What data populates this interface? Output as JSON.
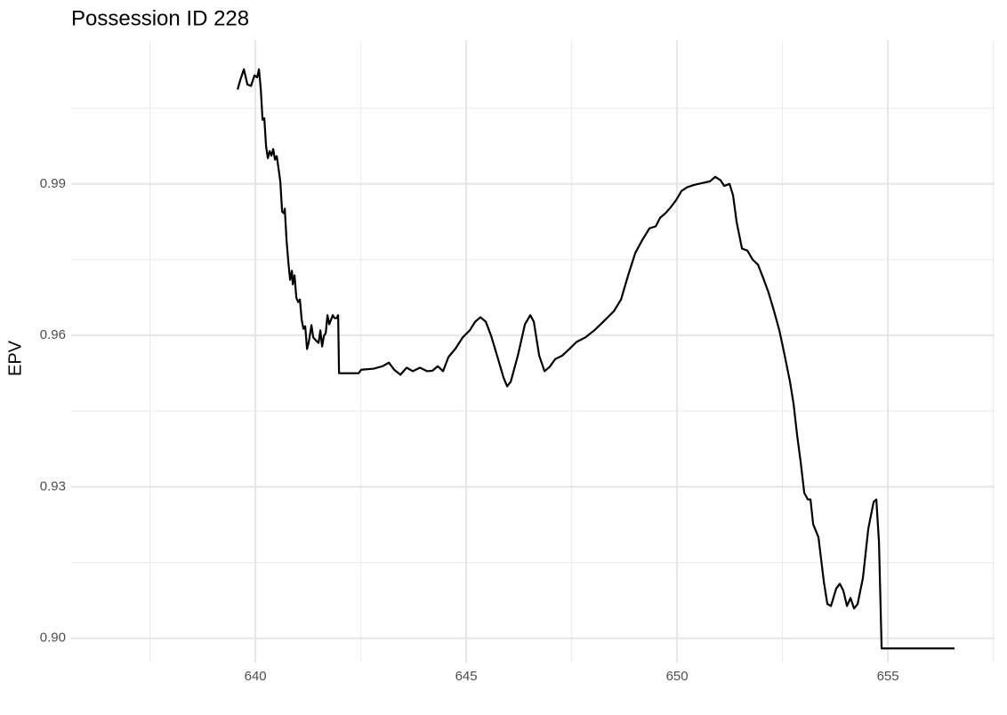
{
  "chart_data": {
    "type": "line",
    "title": "Possession ID 228",
    "y_label": "EPV",
    "color": "#000000",
    "grid": true,
    "xlim": [
      635.63,
      657.53
    ],
    "ylim": [
      0.8952,
      1.0185
    ],
    "xticks": [
      640,
      645,
      650,
      655
    ],
    "yticks": [
      {
        "value": 0.9,
        "label": "0.90"
      },
      0.93,
      0.96,
      0.99
    ],
    "x": [
      639.578,
      639.641,
      639.726,
      639.81,
      639.895,
      639.979,
      640.042,
      640.084,
      640.127,
      640.169,
      640.211,
      640.253,
      640.295,
      640.338,
      640.38,
      640.422,
      640.464,
      640.506,
      640.549,
      640.591,
      640.633,
      640.675,
      640.696,
      640.738,
      640.781,
      640.823,
      640.865,
      640.886,
      640.928,
      640.97,
      641.013,
      641.055,
      641.097,
      641.139,
      641.181,
      641.224,
      641.266,
      641.329,
      641.371,
      641.435,
      641.498,
      641.54,
      641.582,
      641.624,
      641.667,
      641.709,
      641.751,
      641.793,
      641.835,
      641.878,
      641.92,
      641.962,
      641.983,
      642.447,
      642.511,
      642.806,
      643.017,
      643.165,
      643.291,
      643.439,
      643.586,
      643.734,
      643.903,
      644.072,
      644.198,
      644.325,
      644.451,
      644.578,
      644.747,
      644.916,
      645.084,
      645.211,
      645.338,
      645.464,
      645.591,
      645.759,
      645.886,
      645.97,
      646.055,
      646.224,
      646.392,
      646.519,
      646.603,
      646.73,
      646.857,
      646.983,
      647.11,
      647.278,
      647.447,
      647.616,
      647.827,
      648.038,
      648.249,
      648.502,
      648.671,
      648.84,
      649.008,
      649.177,
      649.346,
      649.494,
      649.599,
      649.726,
      649.852,
      649.979,
      650.105,
      650.232,
      650.401,
      650.612,
      650.781,
      650.907,
      651.034,
      651.118,
      651.245,
      651.329,
      651.414,
      651.54,
      651.667,
      651.793,
      651.92,
      652.046,
      652.173,
      652.3,
      652.426,
      652.553,
      652.679,
      652.764,
      652.848,
      652.932,
      653.017,
      653.101,
      653.165,
      653.228,
      653.354,
      653.481,
      653.565,
      653.65,
      653.776,
      653.861,
      653.945,
      654.03,
      654.114,
      654.198,
      654.283,
      654.409,
      654.536,
      654.662,
      654.726,
      654.789,
      654.852,
      656.582
    ],
    "values": [
      1.0087,
      1.0106,
      1.0127,
      1.0097,
      1.0094,
      1.0115,
      1.0111,
      1.0127,
      1.0088,
      1.0027,
      1.003,
      0.9974,
      0.9951,
      0.9965,
      0.9956,
      0.9969,
      0.9948,
      0.9955,
      0.993,
      0.9904,
      0.9845,
      0.9842,
      0.9851,
      0.9789,
      0.9745,
      0.971,
      0.9728,
      0.9701,
      0.9719,
      0.9675,
      0.9666,
      0.9671,
      0.9631,
      0.9613,
      0.9618,
      0.9573,
      0.9587,
      0.962,
      0.9596,
      0.959,
      0.9585,
      0.961,
      0.9578,
      0.9599,
      0.9604,
      0.964,
      0.9622,
      0.9631,
      0.964,
      0.9634,
      0.9634,
      0.964,
      0.9525,
      0.9525,
      0.9532,
      0.9534,
      0.9539,
      0.9546,
      0.9532,
      0.9522,
      0.9536,
      0.9529,
      0.9536,
      0.9529,
      0.953,
      0.9539,
      0.9529,
      0.9557,
      0.9574,
      0.9596,
      0.961,
      0.9627,
      0.9636,
      0.9627,
      0.9599,
      0.9552,
      0.9516,
      0.9499,
      0.9508,
      0.956,
      0.9622,
      0.964,
      0.9627,
      0.956,
      0.9529,
      0.9538,
      0.9553,
      0.956,
      0.9573,
      0.9587,
      0.9596,
      0.961,
      0.9627,
      0.9648,
      0.9671,
      0.9719,
      0.9763,
      0.9789,
      0.9812,
      0.9816,
      0.9833,
      0.9842,
      0.9854,
      0.9868,
      0.9886,
      0.9893,
      0.9898,
      0.9902,
      0.9905,
      0.9914,
      0.9907,
      0.9896,
      0.99,
      0.9877,
      0.9824,
      0.9772,
      0.9768,
      0.975,
      0.974,
      0.9713,
      0.9684,
      0.9648,
      0.961,
      0.956,
      0.9508,
      0.9464,
      0.9402,
      0.9349,
      0.9288,
      0.9275,
      0.9275,
      0.9226,
      0.92,
      0.9112,
      0.9068,
      0.9064,
      0.9099,
      0.9108,
      0.9094,
      0.9064,
      0.908,
      0.9059,
      0.9068,
      0.912,
      0.9217,
      0.927,
      0.9275,
      0.9191,
      0.898,
      0.898
    ]
  }
}
